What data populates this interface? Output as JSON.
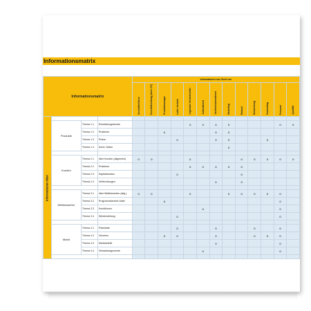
{
  "title": "Informationsmatrix",
  "corner_label": "Informationsmatrix",
  "col_group_label": "Informationen aus Sicht von",
  "row_side_label": "Informationen über",
  "columns": [
    "Geschäftsführer",
    "Geschäftsleitung (ohne GF)",
    "Produktmanager",
    "Leiter Vertrieb",
    "regionale Vertriebsleiter",
    "Außendienst",
    "Vertriebsinnendienst",
    "Marketing",
    "Einkauf",
    "Entwicklung",
    "Controlling",
    "Personal",
    "Qualität"
  ],
  "groups": [
    {
      "name": "Produkte",
      "rows": [
        {
          "id": "Thema 1.1",
          "name": "Entwicklungstrends",
          "marks": [
            0,
            0,
            0,
            0,
            1,
            1,
            1,
            1,
            0,
            0,
            0,
            1,
            1
          ]
        },
        {
          "id": "Thema 1.2",
          "name": "Probleme",
          "marks": [
            0,
            0,
            1,
            0,
            0,
            0,
            1,
            1,
            0,
            0,
            0,
            0,
            0
          ]
        },
        {
          "id": "Thema 1.3",
          "name": "Preise",
          "marks": [
            0,
            0,
            0,
            1,
            0,
            0,
            1,
            1,
            0,
            0,
            1,
            0,
            0
          ]
        },
        {
          "id": "Thema 1.4",
          "name": "techn. Daten",
          "marks": [
            0,
            0,
            0,
            0,
            0,
            0,
            0,
            1,
            0,
            0,
            0,
            0,
            0
          ]
        }
      ]
    },
    {
      "name": "Kunden",
      "rows": [
        {
          "id": "Thema 2.1",
          "name": "über Kunden (allgemein)",
          "marks": [
            1,
            1,
            0,
            0,
            1,
            0,
            0,
            0,
            1,
            1,
            1,
            1,
            1
          ]
        },
        {
          "id": "Thema 2.2",
          "name": "Probleme",
          "marks": [
            0,
            0,
            0,
            0,
            1,
            1,
            1,
            1,
            1,
            0,
            0,
            0,
            0
          ]
        },
        {
          "id": "Thema 2.3",
          "name": "Kapitalstruktur",
          "marks": [
            0,
            0,
            0,
            1,
            0,
            0,
            0,
            0,
            1,
            0,
            0,
            0,
            0
          ]
        },
        {
          "id": "Thema 2.4",
          "name": "Verflechtungen",
          "marks": [
            0,
            0,
            0,
            0,
            0,
            0,
            1,
            0,
            1,
            0,
            0,
            0,
            0
          ]
        }
      ]
    },
    {
      "name": "Wettbewerber",
      "rows": [
        {
          "id": "Thema 3.1",
          "name": "über Wettbewerber (allg.)",
          "marks": [
            1,
            1,
            0,
            0,
            1,
            0,
            0,
            1,
            1,
            1,
            1,
            1,
            0
          ]
        },
        {
          "id": "Thema 3.2",
          "name": "Programmbereich Halle",
          "marks": [
            0,
            0,
            1,
            0,
            0,
            0,
            0,
            0,
            0,
            0,
            0,
            1,
            0
          ]
        },
        {
          "id": "Thema 3.3",
          "name": "Konditionen",
          "marks": [
            0,
            0,
            0,
            0,
            0,
            1,
            0,
            0,
            0,
            0,
            0,
            1,
            0
          ]
        },
        {
          "id": "Thema 3.4",
          "name": "Wiederstellung",
          "marks": [
            0,
            0,
            0,
            1,
            0,
            0,
            0,
            0,
            0,
            0,
            0,
            1,
            0
          ]
        }
      ]
    },
    {
      "name": "Markt",
      "rows": [
        {
          "id": "Thema 4.1",
          "name": "Potentiale",
          "marks": [
            0,
            0,
            0,
            1,
            0,
            0,
            1,
            0,
            0,
            1,
            0,
            1,
            0
          ]
        },
        {
          "id": "Thema 4.2",
          "name": "Volumen",
          "marks": [
            0,
            0,
            1,
            1,
            0,
            0,
            1,
            0,
            0,
            1,
            1,
            1,
            0
          ]
        },
        {
          "id": "Thema 4.3",
          "name": "Marktanteile",
          "marks": [
            0,
            0,
            0,
            0,
            0,
            0,
            1,
            0,
            0,
            0,
            0,
            1,
            0
          ]
        },
        {
          "id": "Thema 4.4",
          "name": "Verkaufsargumente",
          "marks": [
            0,
            0,
            0,
            0,
            0,
            1,
            0,
            0,
            0,
            0,
            0,
            1,
            0
          ]
        }
      ]
    }
  ],
  "mark_symbol": "o",
  "colors": {
    "accent": "#f7bd0a",
    "cell": "#ddeaf4",
    "border": "#c8d6e2"
  }
}
